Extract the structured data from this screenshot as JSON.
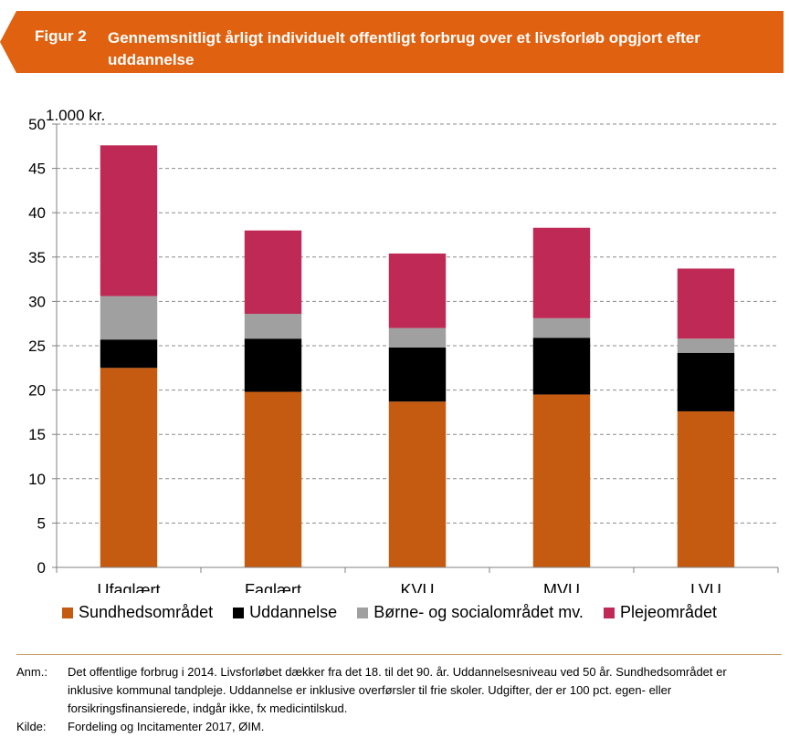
{
  "header": {
    "figure_label": "Figur 2",
    "title": "Gennemsnitligt årligt individuelt offentligt forbrug over et livsforløb opgjort efter uddannelse",
    "color": "#e0610f"
  },
  "chart_data": {
    "type": "bar",
    "stacked": true,
    "categories": [
      "Ufaglært",
      "Faglært",
      "KVU",
      "MVU",
      "LVU"
    ],
    "series": [
      {
        "name": "Sundhedsområdet",
        "color": "#c55a11",
        "values": [
          22.5,
          19.8,
          18.7,
          19.5,
          17.6
        ]
      },
      {
        "name": "Uddannelse",
        "color": "#000000",
        "values": [
          3.2,
          6.0,
          6.1,
          6.4,
          6.6
        ]
      },
      {
        "name": "Børne- og socialområdet mv.",
        "color": "#a0a0a0",
        "values": [
          4.9,
          2.8,
          2.2,
          2.2,
          1.6
        ]
      },
      {
        "name": "Plejeområdet",
        "color": "#be2a55",
        "values": [
          17.0,
          9.4,
          8.4,
          10.2,
          7.9
        ]
      }
    ],
    "ylabel": "1.000 kr.",
    "ylim": [
      0,
      50
    ],
    "yticks": [
      0,
      5,
      10,
      15,
      20,
      25,
      30,
      35,
      40,
      45,
      50
    ],
    "grid": true,
    "legend_position": "bottom"
  },
  "notes": {
    "anm_label": "Anm.:",
    "anm_text": "Det offentlige forbrug i 2014. Livsforløbet dækker fra det 18. til det 90. år. Uddannelsesniveau ved 50 år. Sundhedsområdet er inklusive kommunal tandpleje. Uddannelse er inklusive overførsler til frie skoler. Udgifter, der er 100 pct. egen- eller forsikringsfinansierede, indgår ikke, fx medicintilskud.",
    "kilde_label": "Kilde:",
    "kilde_text": "Fordeling og Incitamenter 2017, ØIM."
  }
}
